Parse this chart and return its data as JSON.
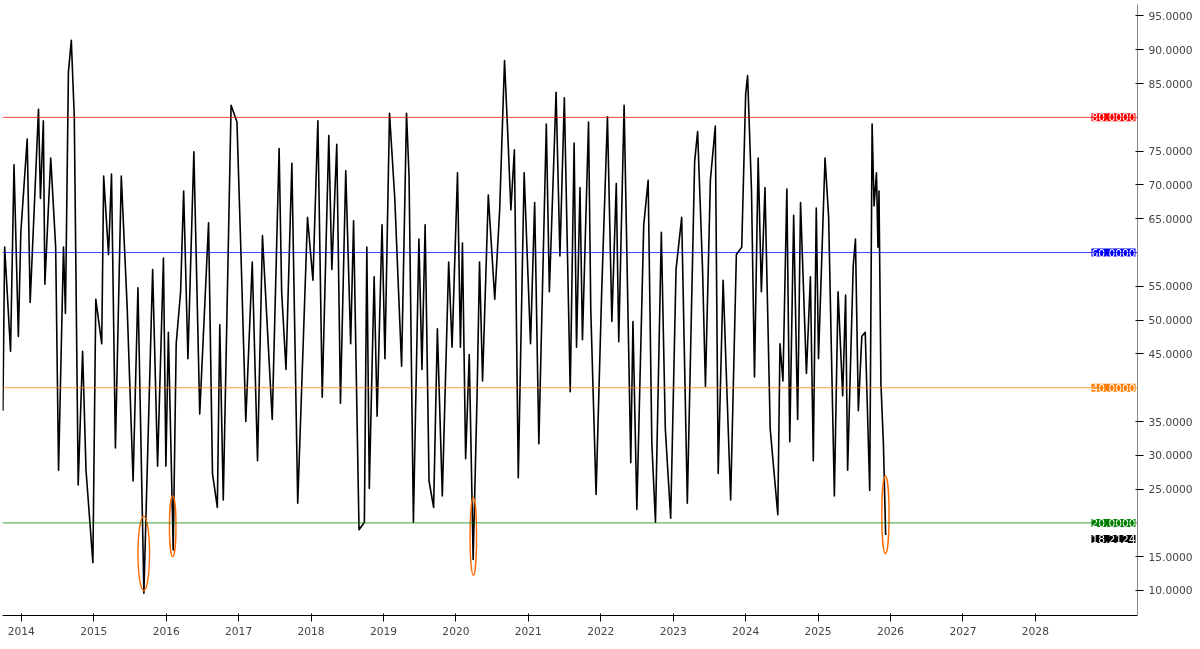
{
  "chart_data": {
    "type": "line",
    "x": [
      2013.745,
      2013.77,
      2013.851,
      2013.899,
      2013.959,
      2013.993,
      2014.081,
      2014.122,
      2014.237,
      2014.264,
      2014.304,
      2014.325,
      2014.406,
      2014.474,
      2014.514,
      2014.582,
      2014.609,
      2014.65,
      2014.69,
      2014.731,
      2014.785,
      2014.846,
      2014.893,
      2014.988,
      2015.028,
      2015.11,
      2015.137,
      2015.204,
      2015.245,
      2015.299,
      2015.38,
      2015.461,
      2015.543,
      2015.61,
      2015.692,
      2015.813,
      2015.881,
      2015.962,
      2015.996,
      2016.03,
      2016.097,
      2016.138,
      2016.199,
      2016.241,
      2016.3,
      2016.382,
      2016.463,
      2016.585,
      2016.639,
      2016.706,
      2016.74,
      2016.788,
      2016.896,
      2016.977,
      2017.031,
      2017.099,
      2017.188,
      2017.261,
      2017.329,
      2017.464,
      2017.559,
      2017.594,
      2017.654,
      2017.735,
      2017.816,
      2017.951,
      2018.026,
      2018.094,
      2018.154,
      2018.245,
      2018.287,
      2018.355,
      2018.406,
      2018.479,
      2018.547,
      2018.587,
      2018.662,
      2018.736,
      2018.77,
      2018.804,
      2018.871,
      2018.912,
      2018.98,
      2019.02,
      2019.083,
      2019.156,
      2019.25,
      2019.318,
      2019.353,
      2019.413,
      2019.489,
      2019.531,
      2019.575,
      2019.629,
      2019.692,
      2019.744,
      2019.812,
      2019.9,
      2019.947,
      2020.022,
      2020.062,
      2020.09,
      2020.134,
      2020.184,
      2020.238,
      2020.292,
      2020.326,
      2020.368,
      2020.447,
      2020.536,
      2020.604,
      2020.671,
      2020.717,
      2020.759,
      2020.807,
      2020.861,
      2020.942,
      2021.03,
      2021.087,
      2021.145,
      2021.248,
      2021.29,
      2021.383,
      2021.436,
      2021.497,
      2021.578,
      2021.632,
      2021.665,
      2021.713,
      2021.747,
      2021.831,
      2021.862,
      2021.935,
      2022.011,
      2022.092,
      2022.153,
      2022.214,
      2022.248,
      2022.322,
      2022.414,
      2022.444,
      2022.498,
      2022.593,
      2022.654,
      2022.705,
      2022.755,
      2022.836,
      2022.891,
      2022.965,
      2023.039,
      2023.117,
      2023.195,
      2023.296,
      2023.337,
      2023.405,
      2023.445,
      2023.513,
      2023.581,
      2023.621,
      2023.689,
      2023.793,
      2023.872,
      2023.946,
      2024.0,
      2024.027,
      2024.081,
      2024.122,
      2024.173,
      2024.217,
      2024.267,
      2024.339,
      2024.444,
      2024.474,
      2024.515,
      2024.569,
      2024.609,
      2024.663,
      2024.718,
      2024.758,
      2024.839,
      2024.894,
      2024.934,
      2024.975,
      2025.006,
      2025.096,
      2025.146,
      2025.225,
      2025.276,
      2025.34,
      2025.38,
      2025.408,
      2025.485,
      2025.516,
      2025.556,
      2025.604,
      2025.651,
      2025.713,
      2025.746,
      2025.773,
      2025.806,
      2025.827,
      2025.841,
      2025.868,
      2025.902,
      2025.933
    ],
    "series": [
      {
        "color": "#000000",
        "values": [
          36.6,
          60.8,
          45.4,
          73,
          47.6,
          63,
          76.8,
          52.6,
          81.2,
          68,
          79.5,
          55.3,
          74,
          60.8,
          27.8,
          60.8,
          51,
          86.7,
          91.4,
          80.1,
          25.6,
          45.4,
          27.8,
          14.1,
          53.1,
          46.5,
          71.3,
          59.7,
          71.6,
          31.1,
          71.3,
          52,
          26.2,
          54.8,
          9.6,
          57.5,
          28.4,
          59.2,
          28.4,
          48.2,
          16,
          46.5,
          54.2,
          69.1,
          44.3,
          74.9,
          36.1,
          64.4,
          27.3,
          22.3,
          49.3,
          23.4,
          81.8,
          79.3,
          60.3,
          35,
          58.6,
          29.2,
          62.5,
          35.3,
          75.4,
          54.2,
          42.7,
          73.2,
          22.9,
          65.2,
          55.9,
          79.5,
          38.6,
          77.3,
          57.5,
          76,
          37.7,
          72.1,
          46.5,
          64.7,
          19,
          20.1,
          60.8,
          25.1,
          56.4,
          35.8,
          64.1,
          44.3,
          80.6,
          68,
          43.2,
          80.6,
          71.3,
          20.1,
          62,
          42.7,
          64.1,
          26.2,
          22.3,
          48.7,
          24,
          58.6,
          46,
          71.8,
          46,
          61.4,
          29.5,
          44.9,
          14.6,
          38.8,
          58.6,
          41,
          68.5,
          53.1,
          66.3,
          88.4,
          77.3,
          66.3,
          75.2,
          26.7,
          71.8,
          46.5,
          67.4,
          31.7,
          79,
          54.2,
          83.7,
          59.5,
          82.9,
          39.4,
          76.2,
          46,
          69.6,
          47.1,
          79.3,
          51.5,
          24.2,
          53.7,
          80.1,
          49.8,
          70.2,
          46.8,
          81.8,
          28.9,
          49.8,
          22,
          64.1,
          70.7,
          31.7,
          20.1,
          63,
          33.9,
          20.7,
          57.5,
          65.2,
          22.9,
          73.5,
          77.9,
          57.5,
          40.2,
          70.7,
          78.7,
          27.3,
          55.9,
          23.4,
          59.7,
          60.8,
          83.4,
          86.2,
          69.1,
          41.6,
          74,
          54.2,
          69.6,
          33.9,
          21.2,
          46.5,
          41,
          69.4,
          32,
          65.5,
          35.3,
          67.4,
          42.1,
          56.4,
          29.2,
          66.6,
          44.3,
          74,
          65.2,
          24,
          54.2,
          38.8,
          53.7,
          27.8,
          58,
          62,
          36.6,
          47.6,
          48.2,
          24.8,
          79,
          66.9,
          71.8,
          60.8,
          69.1,
          40.5,
          31.7,
          18.2124
        ]
      }
    ],
    "xlim": [
      2013.74,
      2029.41
    ],
    "ylim": [
      6.3,
      96.7
    ],
    "xticks": [
      2014,
      2015,
      2016,
      2017,
      2018,
      2019,
      2020,
      2021,
      2022,
      2023,
      2024,
      2025,
      2026,
      2027,
      2028
    ],
    "yticks": [
      {
        "value": 10,
        "label": "10.0000"
      },
      {
        "value": 15,
        "label": "15.0000"
      },
      {
        "value": 25,
        "label": "25.0000"
      },
      {
        "value": 30,
        "label": "30.0000"
      },
      {
        "value": 35,
        "label": "35.0000"
      },
      {
        "value": 45,
        "label": "45.0000"
      },
      {
        "value": 50,
        "label": "50.0000"
      },
      {
        "value": 55,
        "label": "55.0000"
      },
      {
        "value": 65,
        "label": "65.0000"
      },
      {
        "value": 70,
        "label": "70.0000"
      },
      {
        "value": 75,
        "label": "75.0000"
      },
      {
        "value": 85,
        "label": "85.0000"
      },
      {
        "value": 90,
        "label": "90.0000"
      },
      {
        "value": 95,
        "label": "95.0000"
      }
    ],
    "ref_lines": [
      {
        "axis": "y",
        "value": 80,
        "label": "80.0000",
        "color": "#ff0000"
      },
      {
        "axis": "y",
        "value": 60,
        "label": "60.0000",
        "color": "#0000ff"
      },
      {
        "axis": "y",
        "value": 40,
        "label": "40.0000",
        "color": "#ff8000"
      },
      {
        "axis": "y",
        "value": 20,
        "label": "20.0000",
        "color": "#008000"
      }
    ],
    "annotations": [
      "18.2124"
    ],
    "grid": false
  }
}
